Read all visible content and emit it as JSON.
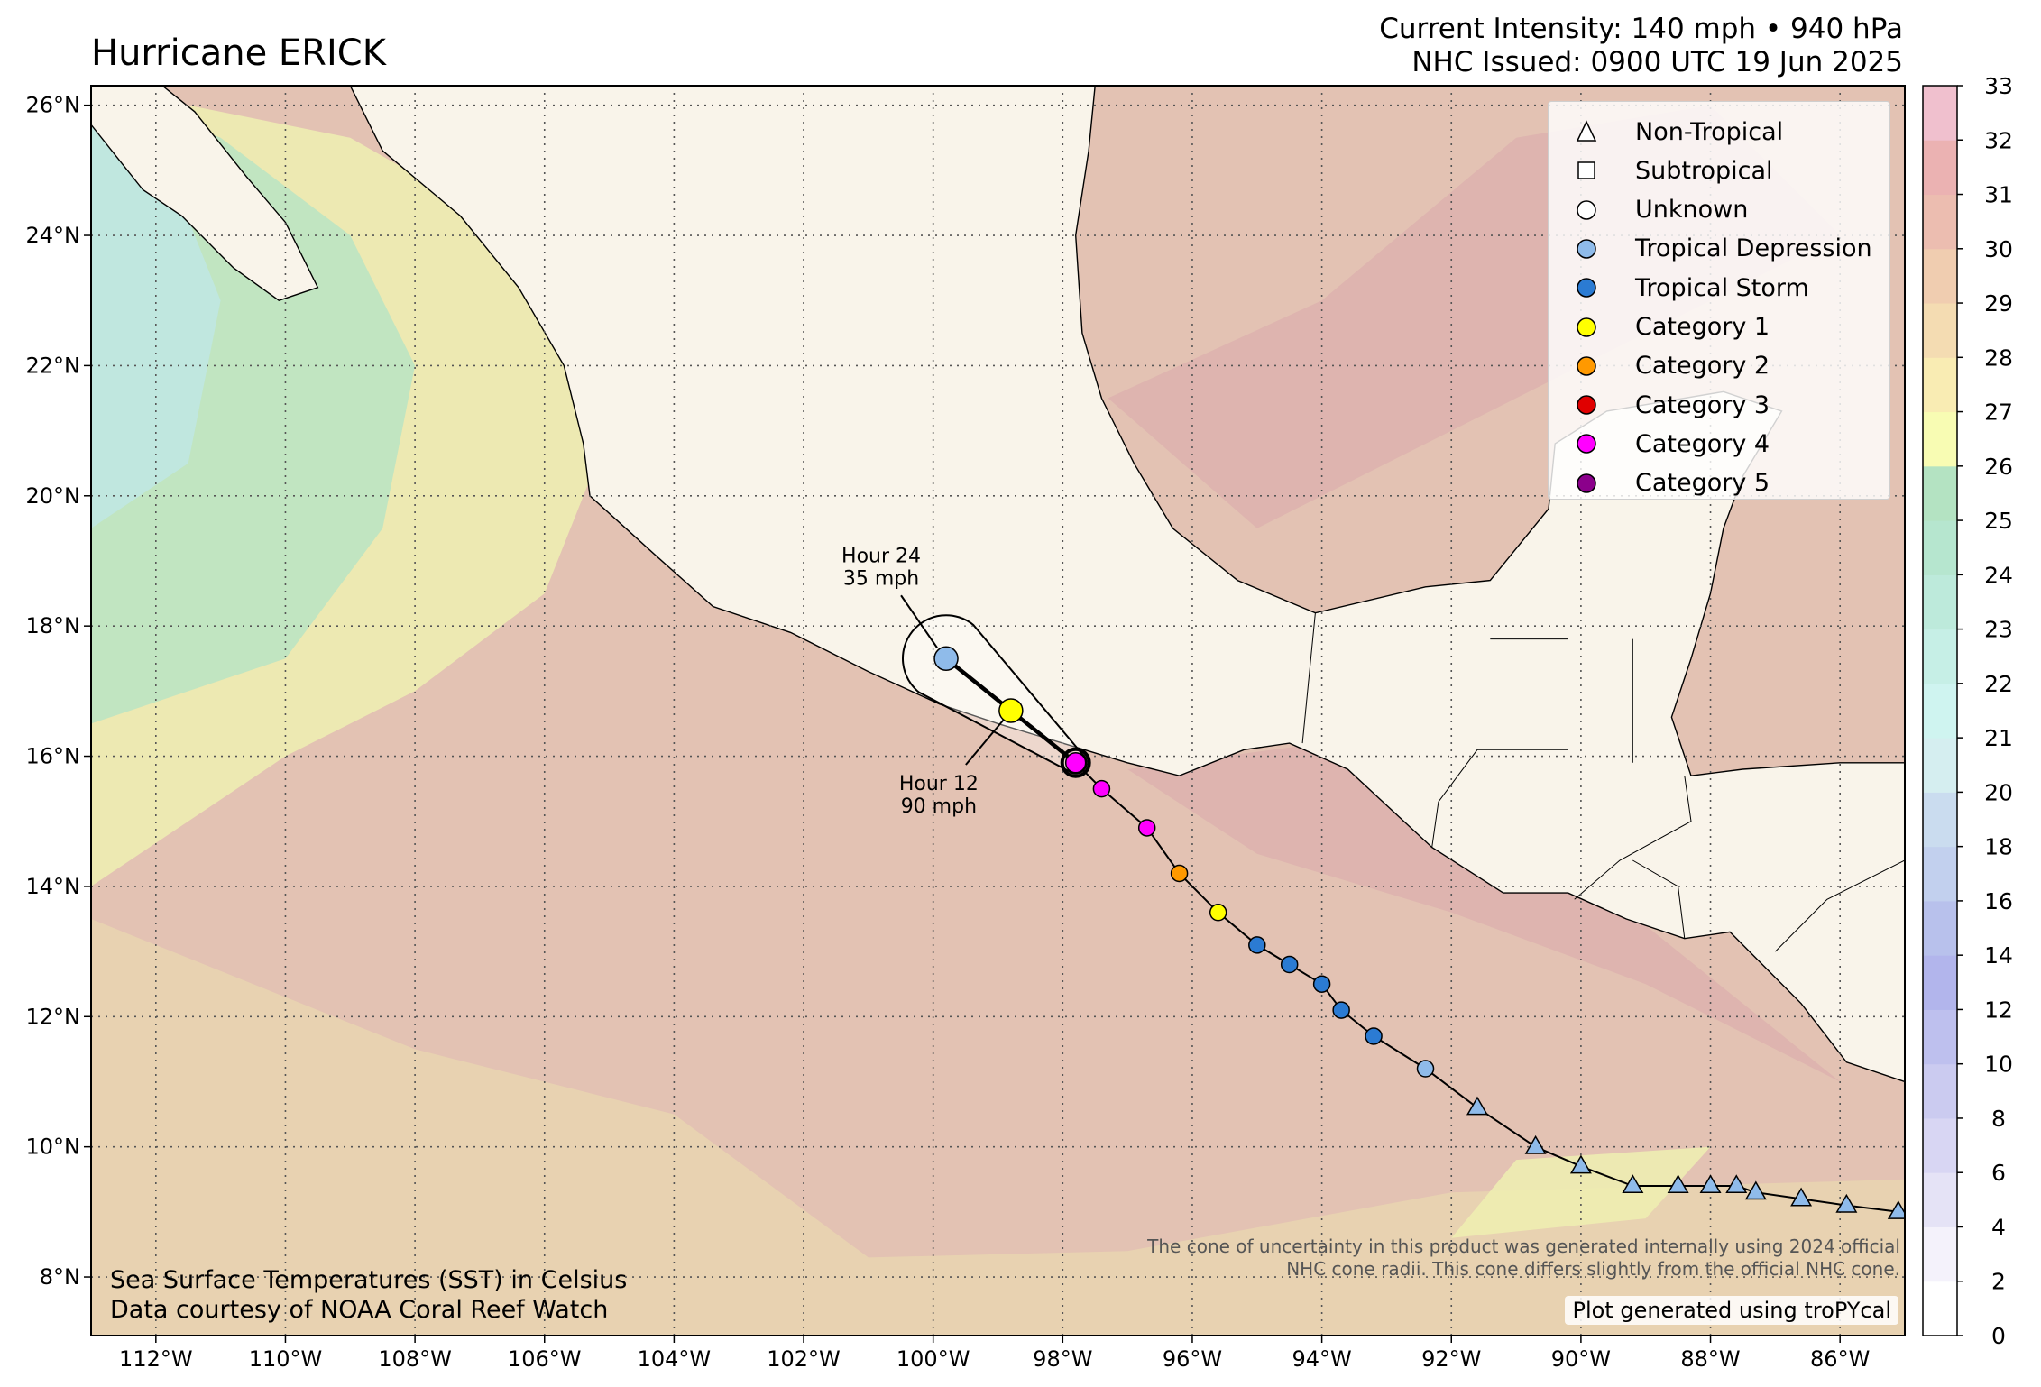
{
  "header": {
    "title": "Hurricane ERICK",
    "intensity_line": "Current Intensity: 140 mph • 940 hPa",
    "issued_line": "NHC Issued: 0900 UTC 19 Jun 2025"
  },
  "map": {
    "lon_range": [
      -113,
      -85
    ],
    "lat_range": [
      7.1,
      26.3
    ],
    "lon_ticks": [
      {
        "value": -112,
        "label": "112°W"
      },
      {
        "value": -110,
        "label": "110°W"
      },
      {
        "value": -108,
        "label": "108°W"
      },
      {
        "value": -106,
        "label": "106°W"
      },
      {
        "value": -104,
        "label": "104°W"
      },
      {
        "value": -102,
        "label": "102°W"
      },
      {
        "value": -100,
        "label": "100°W"
      },
      {
        "value": -98,
        "label": "98°W"
      },
      {
        "value": -96,
        "label": "96°W"
      },
      {
        "value": -94,
        "label": "94°W"
      },
      {
        "value": -92,
        "label": "92°W"
      },
      {
        "value": -90,
        "label": "90°W"
      },
      {
        "value": -88,
        "label": "88°W"
      },
      {
        "value": -86,
        "label": "86°W"
      }
    ],
    "lat_ticks": [
      {
        "value": 8,
        "label": "8°N"
      },
      {
        "value": 10,
        "label": "10°N"
      },
      {
        "value": 12,
        "label": "12°N"
      },
      {
        "value": 14,
        "label": "14°N"
      },
      {
        "value": 16,
        "label": "16°N"
      },
      {
        "value": 18,
        "label": "18°N"
      },
      {
        "value": 20,
        "label": "20°N"
      },
      {
        "value": 22,
        "label": "22°N"
      },
      {
        "value": 24,
        "label": "24°N"
      },
      {
        "value": 26,
        "label": "26°N"
      }
    ],
    "colors": {
      "land": "#f9f4ea",
      "ocean_warm": "#e3c2b3",
      "ocean_hot": "#ddb1ae",
      "ocean_mild": "#e9d5b0",
      "ocean_yellow": "#eef0b2",
      "ocean_green": "#b9e4c3",
      "ocean_cyan": "#bfe8e4",
      "track": "#000000"
    }
  },
  "legend": {
    "items": [
      {
        "label": "Non-Tropical",
        "shape": "triangle",
        "color": "#ffffff"
      },
      {
        "label": "Subtropical",
        "shape": "square",
        "color": "#ffffff"
      },
      {
        "label": "Unknown",
        "shape": "circle",
        "color": "#ffffff"
      },
      {
        "label": "Tropical Depression",
        "shape": "circle",
        "color": "#8fbbea"
      },
      {
        "label": "Tropical Storm",
        "shape": "circle",
        "color": "#2b7bd3"
      },
      {
        "label": "Category 1",
        "shape": "circle",
        "color": "#ffff00"
      },
      {
        "label": "Category 2",
        "shape": "circle",
        "color": "#ff9900"
      },
      {
        "label": "Category 3",
        "shape": "circle",
        "color": "#e00000"
      },
      {
        "label": "Category 4",
        "shape": "circle",
        "color": "#ff00ff"
      },
      {
        "label": "Category 5",
        "shape": "circle",
        "color": "#8b008b"
      }
    ]
  },
  "track": {
    "observed": [
      {
        "lon": -85.1,
        "lat": 9.0,
        "status": "non-tropical"
      },
      {
        "lon": -85.9,
        "lat": 9.1,
        "status": "non-tropical"
      },
      {
        "lon": -86.6,
        "lat": 9.2,
        "status": "non-tropical"
      },
      {
        "lon": -87.3,
        "lat": 9.3,
        "status": "non-tropical"
      },
      {
        "lon": -87.6,
        "lat": 9.4,
        "status": "non-tropical"
      },
      {
        "lon": -88.0,
        "lat": 9.4,
        "status": "non-tropical"
      },
      {
        "lon": -88.5,
        "lat": 9.4,
        "status": "non-tropical"
      },
      {
        "lon": -89.2,
        "lat": 9.4,
        "status": "non-tropical"
      },
      {
        "lon": -90.0,
        "lat": 9.7,
        "status": "non-tropical"
      },
      {
        "lon": -90.7,
        "lat": 10.0,
        "status": "non-tropical"
      },
      {
        "lon": -91.6,
        "lat": 10.6,
        "status": "non-tropical"
      },
      {
        "lon": -92.4,
        "lat": 11.2,
        "status": "tropical-depression"
      },
      {
        "lon": -93.2,
        "lat": 11.7,
        "status": "tropical-storm"
      },
      {
        "lon": -93.7,
        "lat": 12.1,
        "status": "tropical-storm"
      },
      {
        "lon": -94.0,
        "lat": 12.5,
        "status": "tropical-storm"
      },
      {
        "lon": -94.5,
        "lat": 12.8,
        "status": "tropical-storm"
      },
      {
        "lon": -95.0,
        "lat": 13.1,
        "status": "tropical-storm"
      },
      {
        "lon": -95.6,
        "lat": 13.6,
        "status": "category-1"
      },
      {
        "lon": -96.2,
        "lat": 14.2,
        "status": "category-2"
      },
      {
        "lon": -96.7,
        "lat": 14.9,
        "status": "category-4"
      },
      {
        "lon": -97.4,
        "lat": 15.5,
        "status": "category-4"
      },
      {
        "lon": -97.8,
        "lat": 15.9,
        "status": "category-4"
      }
    ],
    "forecast": [
      {
        "lon": -97.8,
        "lat": 15.9,
        "status": "category-4"
      },
      {
        "lon": -98.8,
        "lat": 16.7,
        "status": "category-1"
      },
      {
        "lon": -99.8,
        "lat": 17.5,
        "status": "tropical-depression"
      }
    ],
    "annotations": [
      {
        "line1": "Hour 12",
        "line2": "90 mph"
      },
      {
        "line1": "Hour 24",
        "line2": "35 mph"
      }
    ]
  },
  "colorbar": {
    "ticks": [
      0,
      2,
      4,
      6,
      8,
      10,
      12,
      14,
      16,
      18,
      20,
      21,
      22,
      23,
      24,
      25,
      26,
      27,
      28,
      29,
      30,
      31,
      32,
      33
    ],
    "segment_colors": [
      "#ffffff",
      "#f4f2fb",
      "#e5e3f6",
      "#d8d6f3",
      "#cbcbf0",
      "#bec0ee",
      "#b2b5ec",
      "#b8c1ec",
      "#c2d0ee",
      "#cadcef",
      "#d5eef0",
      "#cff4f0",
      "#c6efe6",
      "#bdeadb",
      "#b6e6cf",
      "#b4e3c2",
      "#f8fcb3",
      "#f9ecb3",
      "#f4dcb2",
      "#f0cdb0",
      "#ecbdb0",
      "#ebb2b2",
      "#f0c0ce",
      "#f7d8ee"
    ]
  },
  "notes": {
    "sst_line1": "Sea Surface Temperatures (SST) in Celsius",
    "sst_line2": "Data courtesy of NOAA Coral Reef Watch",
    "cone_line1": "The cone of uncertainty in this product was generated internally using 2024 official",
    "cone_line2": "NHC cone radii. This cone differs slightly from the official NHC cone.",
    "credit": "Plot generated using troPYcal"
  }
}
